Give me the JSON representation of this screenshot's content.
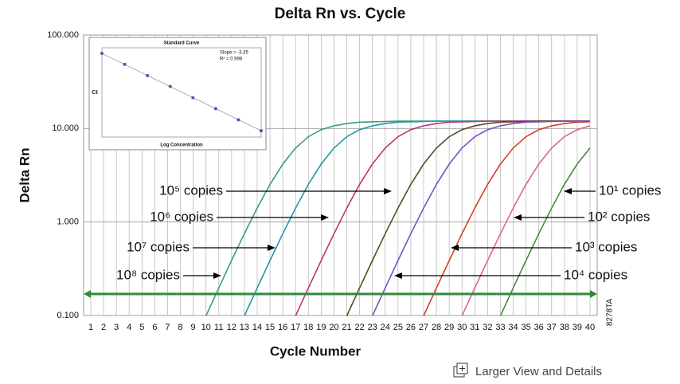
{
  "chart_data": [
    {
      "type": "line",
      "title": "Delta Rn vs. Cycle",
      "x_label": "Cycle Number",
      "y_label": "Delta Rn",
      "log_y": true,
      "grid": true,
      "x": [
        1,
        2,
        3,
        4,
        5,
        6,
        7,
        8,
        9,
        10,
        11,
        12,
        13,
        14,
        15,
        16,
        17,
        18,
        19,
        20,
        21,
        22,
        23,
        24,
        25,
        26,
        27,
        28,
        29,
        30,
        31,
        32,
        33,
        34,
        35,
        36,
        37,
        38,
        39,
        40
      ],
      "xlim": [
        0.44,
        40.56
      ],
      "xticks": [
        1,
        2,
        3,
        4,
        5,
        6,
        7,
        8,
        9,
        10,
        11,
        12,
        13,
        14,
        15,
        16,
        17,
        18,
        19,
        20,
        21,
        22,
        23,
        24,
        25,
        26,
        27,
        28,
        29,
        30,
        31,
        32,
        33,
        34,
        35,
        36,
        37,
        38,
        39,
        40
      ],
      "ylim": [
        0.1,
        100
      ],
      "yticks": [
        {
          "value": 0.1,
          "label": "0.100"
        },
        {
          "value": 1,
          "label": "1.000"
        },
        {
          "value": 10,
          "label": "10.000"
        },
        {
          "value": 100,
          "label": "100.000"
        }
      ],
      "threshold": 0.17,
      "threshold_color": "#2e8b3a",
      "series": [
        {
          "color": "#3aa070",
          "values": [
            null,
            null,
            null,
            null,
            null,
            null,
            null,
            null,
            null,
            0.099,
            0.197,
            0.387,
            0.75,
            1.41,
            2.53,
            4.17,
            6.19,
            8.17,
            9.72,
            10.7,
            11.3,
            11.7,
            11.8,
            11.9,
            12,
            12,
            12,
            12,
            12,
            12,
            12,
            12,
            12,
            12,
            12,
            12,
            12,
            12,
            12,
            12
          ]
        },
        {
          "color": "#1f9aa0",
          "values": [
            null,
            null,
            null,
            null,
            null,
            null,
            null,
            null,
            null,
            null,
            null,
            null,
            0.099,
            0.197,
            0.387,
            0.75,
            1.41,
            2.53,
            4.17,
            6.19,
            8.17,
            9.72,
            10.7,
            11.3,
            11.7,
            11.8,
            11.9,
            12,
            12,
            12,
            12,
            12,
            12,
            12,
            12,
            12,
            12,
            12,
            12,
            12
          ]
        },
        {
          "color": "#c0307a",
          "values": [
            null,
            null,
            null,
            null,
            null,
            null,
            null,
            null,
            null,
            null,
            null,
            null,
            null,
            null,
            null,
            null,
            0.099,
            0.197,
            0.387,
            0.75,
            1.41,
            2.53,
            4.17,
            6.19,
            8.17,
            9.72,
            10.7,
            11.3,
            11.7,
            11.8,
            11.9,
            12,
            12,
            12,
            12,
            12,
            12,
            12,
            12,
            12
          ]
        },
        {
          "color": "#5a4a20",
          "values": [
            null,
            null,
            null,
            null,
            null,
            null,
            null,
            null,
            null,
            null,
            null,
            null,
            null,
            null,
            null,
            null,
            null,
            null,
            null,
            null,
            0.099,
            0.197,
            0.387,
            0.75,
            1.41,
            2.53,
            4.17,
            6.19,
            8.17,
            9.72,
            10.7,
            11.3,
            11.7,
            11.8,
            11.9,
            12,
            12,
            12,
            12,
            12
          ]
        },
        {
          "color": "#7a50c0",
          "values": [
            null,
            null,
            null,
            null,
            null,
            null,
            null,
            null,
            null,
            null,
            null,
            null,
            null,
            null,
            null,
            null,
            null,
            null,
            null,
            null,
            null,
            null,
            0.099,
            0.197,
            0.387,
            0.75,
            1.41,
            2.53,
            4.17,
            6.19,
            8.17,
            9.72,
            10.7,
            11.3,
            11.7,
            11.8,
            11.9,
            12,
            12,
            12
          ]
        },
        {
          "color": "#d0402a",
          "values": [
            null,
            null,
            null,
            null,
            null,
            null,
            null,
            null,
            null,
            null,
            null,
            null,
            null,
            null,
            null,
            null,
            null,
            null,
            null,
            null,
            null,
            null,
            null,
            null,
            null,
            null,
            0.099,
            0.197,
            0.387,
            0.75,
            1.41,
            2.53,
            4.17,
            6.19,
            8.17,
            9.72,
            10.7,
            11.3,
            11.7,
            11.8
          ]
        },
        {
          "color": "#e060a0",
          "values": [
            null,
            null,
            null,
            null,
            null,
            null,
            null,
            null,
            null,
            null,
            null,
            null,
            null,
            null,
            null,
            null,
            null,
            null,
            null,
            null,
            null,
            null,
            null,
            null,
            null,
            null,
            null,
            null,
            null,
            0.099,
            0.197,
            0.387,
            0.75,
            1.41,
            2.53,
            4.17,
            6.19,
            8.17,
            9.72,
            10.7
          ]
        },
        {
          "color": "#4a8a40",
          "values": [
            null,
            null,
            null,
            null,
            null,
            null,
            null,
            null,
            null,
            null,
            null,
            null,
            null,
            null,
            null,
            null,
            null,
            null,
            null,
            null,
            null,
            null,
            null,
            null,
            null,
            null,
            null,
            null,
            null,
            null,
            null,
            null,
            0.099,
            0.197,
            0.387,
            0.75,
            1.41,
            2.53,
            4.17,
            6.19
          ]
        }
      ],
      "annotations": [
        "10⁵ copies",
        "10⁶ copies",
        "10⁷ copies",
        "10⁸ copies",
        "10¹ copies",
        "10² copies",
        "10³ copies",
        "10⁴ copies"
      ]
    },
    {
      "type": "scatter",
      "title": "Standard Curve",
      "x_label": "Log Concentration",
      "y_label": "Ct",
      "annotations": [
        "Slope = -3.35",
        "R² = 0.998"
      ],
      "x": [
        1,
        2,
        3,
        4,
        5,
        6,
        7,
        8
      ],
      "values": [
        38.3,
        35.0,
        31.6,
        28.3,
        24.9,
        21.6,
        18.2,
        14.9
      ],
      "xlim": [
        1,
        8
      ],
      "ylim": [
        13,
        40
      ],
      "color": "#4a5ab0"
    }
  ],
  "figure_id": "8278TA",
  "link_text": "Larger View and Details"
}
